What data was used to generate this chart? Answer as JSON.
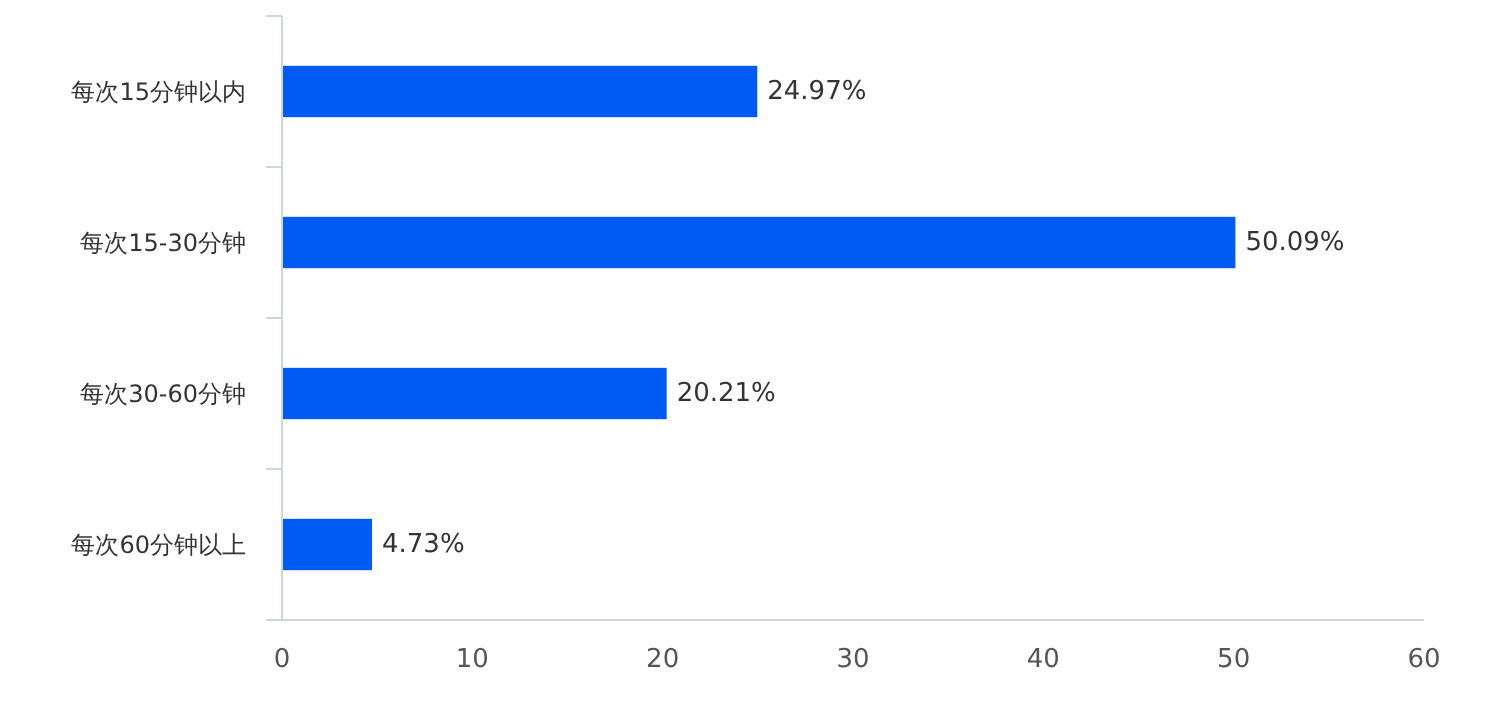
{
  "chart_data": {
    "type": "bar",
    "orientation": "horizontal",
    "categories": [
      "每次15分钟以内",
      "每次15-30分钟",
      "每次30-60分钟",
      "每次60分钟以上"
    ],
    "values": [
      24.97,
      50.09,
      20.21,
      4.73
    ],
    "value_labels": [
      "24.97%",
      "50.09%",
      "20.21%",
      "4.73%"
    ],
    "color": "#005bf5",
    "xlim": [
      0,
      60
    ],
    "xticks": [
      0,
      10,
      20,
      30,
      40,
      50,
      60
    ],
    "grid": false
  }
}
